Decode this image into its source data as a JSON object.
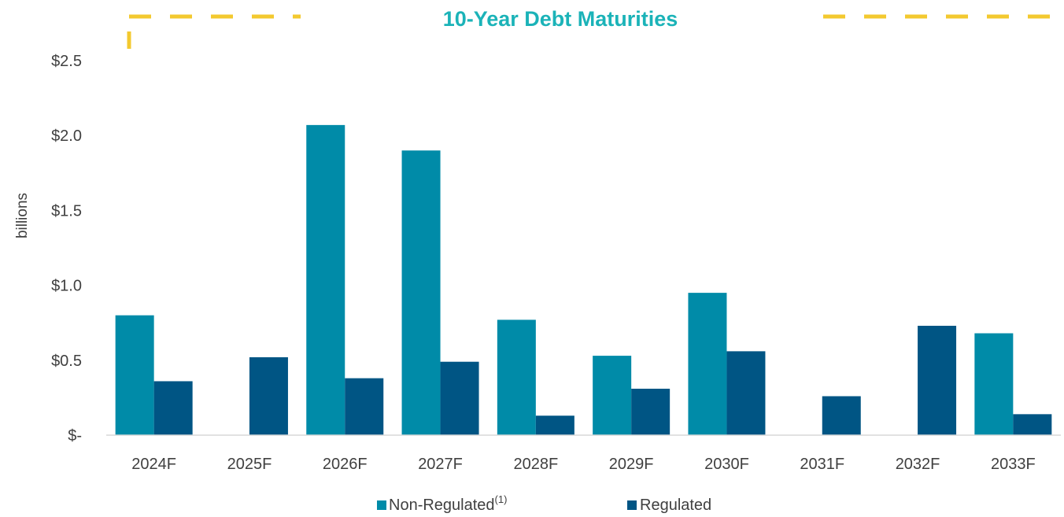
{
  "chart_data": {
    "type": "bar",
    "title": "10-Year Debt Maturities",
    "ylabel": "billions",
    "xlabel": "",
    "categories": [
      "2024F",
      "2025F",
      "2026F",
      "2027F",
      "2028F",
      "2029F",
      "2030F",
      "2031F",
      "2032F",
      "2033F"
    ],
    "series": [
      {
        "name": "Non-Regulated",
        "name_superscript": "(1)",
        "color": "#008ba8",
        "values": [
          0.8,
          0,
          2.07,
          1.9,
          0.77,
          0.53,
          0.95,
          0,
          0,
          0.68
        ]
      },
      {
        "name": "Regulated",
        "color": "#005584",
        "values": [
          0.36,
          0.52,
          0.38,
          0.49,
          0.13,
          0.31,
          0.56,
          0.26,
          0.73,
          0.14
        ]
      }
    ],
    "ylim": [
      0,
      2.5
    ],
    "yticks": [
      0,
      0.5,
      1.0,
      1.5,
      2.0,
      2.5
    ],
    "ytick_labels": [
      "$-",
      "$0.5",
      "$1.0",
      "$1.5",
      "$2.0",
      "$2.5"
    ],
    "grid": false,
    "legend_position": "bottom-center",
    "title_color": "#1bb3b8",
    "accent_color": "#f3c92f"
  }
}
